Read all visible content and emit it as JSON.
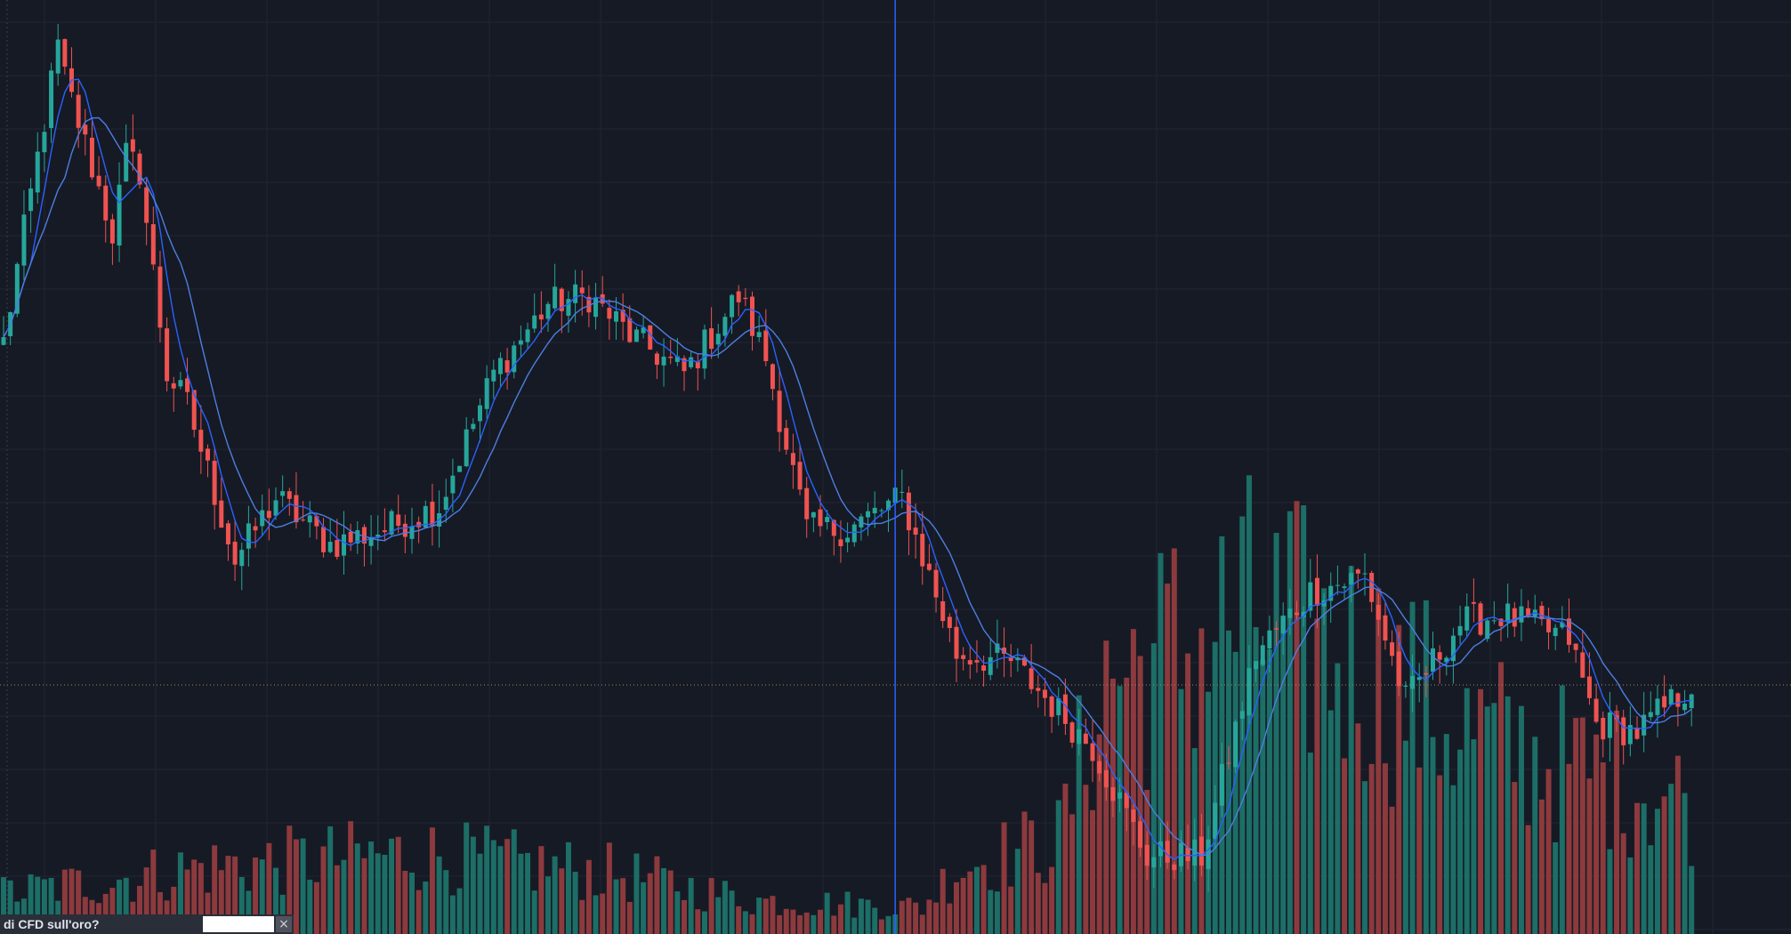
{
  "colors": {
    "background": "#161a25",
    "grid": "#222633",
    "up": "#26a69a",
    "down": "#ef5350",
    "up_volume": "#1c6e66",
    "down_volume": "#8c3a3d",
    "ma_fast": "#2962ff",
    "ma_slow": "#4c7fe0",
    "crosshair": "#2962ff",
    "price_line": "#a08a62"
  },
  "banner": {
    "text": "di CFD sull'oro?",
    "input_value": "",
    "close_icon": "close-icon",
    "close_glyph": "×"
  },
  "chart_data": {
    "type": "candlestick",
    "grid": true,
    "moving_averages": [
      {
        "period": 5,
        "color": "#2962ff"
      },
      {
        "period": 10,
        "color": "#4c7fe0"
      }
    ],
    "crosshair_index": 131,
    "horizontal_price_line": 1000,
    "axes": {
      "price_range": [
        840,
        1440
      ],
      "volume_range": [
        0,
        500
      ]
    },
    "anchors": [
      [
        0,
        1220
      ],
      [
        8,
        1410
      ],
      [
        9,
        1390
      ],
      [
        16,
        1290
      ],
      [
        18,
        1340
      ],
      [
        20,
        1330
      ],
      [
        24,
        1200
      ],
      [
        27,
        1180
      ],
      [
        34,
        1080
      ],
      [
        40,
        1120
      ],
      [
        48,
        1090
      ],
      [
        56,
        1100
      ],
      [
        64,
        1115
      ],
      [
        72,
        1200
      ],
      [
        80,
        1245
      ],
      [
        86,
        1250
      ],
      [
        92,
        1225
      ],
      [
        100,
        1200
      ],
      [
        108,
        1250
      ],
      [
        112,
        1210
      ],
      [
        118,
        1100
      ],
      [
        124,
        1100
      ],
      [
        132,
        1120
      ],
      [
        140,
        1020
      ],
      [
        148,
        1015
      ],
      [
        160,
        960
      ],
      [
        168,
        890
      ],
      [
        176,
        890
      ],
      [
        184,
        1020
      ],
      [
        192,
        1060
      ],
      [
        200,
        1070
      ],
      [
        206,
        990
      ],
      [
        214,
        1040
      ],
      [
        220,
        1045
      ],
      [
        230,
        1030
      ],
      [
        234,
        975
      ],
      [
        240,
        970
      ],
      [
        248,
        1000
      ]
    ],
    "volume_anchors": [
      [
        0,
        60
      ],
      [
        30,
        100
      ],
      [
        60,
        120
      ],
      [
        90,
        90
      ],
      [
        110,
        50
      ],
      [
        135,
        40
      ],
      [
        140,
        100
      ],
      [
        155,
        140
      ],
      [
        162,
        380
      ],
      [
        175,
        430
      ],
      [
        182,
        470
      ],
      [
        190,
        440
      ],
      [
        200,
        400
      ],
      [
        215,
        300
      ],
      [
        230,
        250
      ],
      [
        248,
        200
      ]
    ]
  }
}
